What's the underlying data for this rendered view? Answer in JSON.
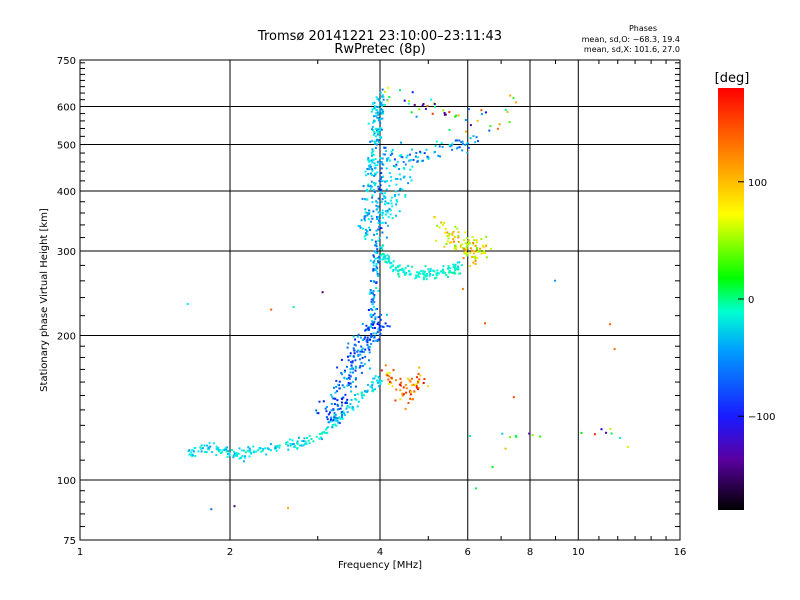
{
  "header": {
    "title": "Tromsø 20141221 23:10:00–23:11:43",
    "subtitle": "RwPretec (8p)",
    "stats_heading": "Phases",
    "stats_line_o": "mean, sd,O: −68.3, 19.4",
    "stats_line_x": "mean, sd,X: 101.6, 27.0"
  },
  "colorbar": {
    "unit_label": "[deg]",
    "range": [
      -180,
      180
    ],
    "ticks": [
      {
        "value": 100,
        "label": "100"
      },
      {
        "value": 0,
        "label": "0"
      },
      {
        "value": -100,
        "label": "−100"
      }
    ]
  },
  "chart_data": {
    "type": "scatter",
    "title": "Tromsø 20141221 23:10:00–23:11:43",
    "subtitle": "RwPretec (8p)",
    "xlabel": "Frequency [MHz]",
    "ylabel": "Stationary phase Virtual Height [km]",
    "xscale": "log",
    "yscale": "log",
    "xlim": [
      1,
      16
    ],
    "ylim": [
      75,
      750
    ],
    "grid": true,
    "x_ticks": [
      {
        "value": 1,
        "label": "1"
      },
      {
        "value": 2,
        "label": "2"
      },
      {
        "value": 4,
        "label": "4"
      },
      {
        "value": 6,
        "label": "6"
      },
      {
        "value": 8,
        "label": "8"
      },
      {
        "value": 10,
        "label": "10"
      },
      {
        "value": 16,
        "label": "16"
      }
    ],
    "x_minor_ticks": [
      3,
      5,
      7,
      9,
      11,
      12,
      13,
      14,
      15
    ],
    "y_ticks": [
      {
        "value": 75,
        "label": "75"
      },
      {
        "value": 100,
        "label": "100"
      },
      {
        "value": 200,
        "label": "200"
      },
      {
        "value": 300,
        "label": "300"
      },
      {
        "value": 400,
        "label": "400"
      },
      {
        "value": 500,
        "label": "500"
      },
      {
        "value": 600,
        "label": "600"
      },
      {
        "value": 750,
        "label": "750"
      }
    ],
    "color_variable": "phase [deg]",
    "traces": [
      {
        "x": [
          1.65,
          1.72,
          1.8,
          1.9,
          2.0,
          2.1,
          2.2,
          2.35,
          2.5,
          2.65,
          2.8,
          3.0,
          3.15,
          3.3,
          3.45,
          3.6,
          3.75,
          3.9,
          4.0
        ],
        "y": [
          112,
          116,
          118,
          116,
          114,
          113,
          114,
          116,
          117,
          118,
          120,
          124,
          128,
          134,
          140,
          146,
          152,
          158,
          163
        ],
        "spread": [
          0.02,
          0.025
        ],
        "phase": [
          -75,
          -25
        ],
        "n": 240
      },
      {
        "x": [
          3.1,
          3.25,
          3.4,
          3.55,
          3.7,
          3.85,
          3.97
        ],
        "y": [
          130,
          145,
          160,
          175,
          190,
          205,
          215
        ],
        "spread": [
          0.05,
          0.05
        ],
        "phase": [
          -120,
          -60
        ],
        "n": 220
      },
      {
        "x": [
          3.85,
          3.9,
          3.95,
          4.0,
          4.05
        ],
        "y": [
          215,
          260,
          310,
          380,
          480
        ],
        "spread": [
          0.02,
          0.06
        ],
        "phase": [
          -110,
          -40
        ],
        "n": 130
      },
      {
        "x": [
          3.75,
          3.8,
          3.85,
          3.9,
          3.95,
          4.0
        ],
        "y": [
          320,
          380,
          440,
          500,
          560,
          630
        ],
        "spread": [
          0.025,
          0.04
        ],
        "phase": [
          -90,
          -30
        ],
        "n": 190
      },
      {
        "x": [
          4.0,
          4.15,
          4.35,
          4.55,
          4.8,
          5.05,
          5.3,
          5.5,
          5.7,
          5.85
        ],
        "y": [
          300,
          285,
          275,
          270,
          268,
          268,
          270,
          272,
          275,
          285
        ],
        "spread": [
          0.02,
          0.025
        ],
        "phase": [
          -60,
          -15
        ],
        "n": 150
      },
      {
        "x": [
          4.0,
          4.3,
          4.6,
          5.0,
          5.4,
          5.8,
          6.2
        ],
        "y": [
          480,
          470,
          470,
          480,
          490,
          500,
          500
        ],
        "spread": [
          0.04,
          0.04
        ],
        "phase": [
          -110,
          -40
        ],
        "n": 80
      },
      {
        "x": [
          4.05,
          4.3,
          4.6
        ],
        "y": [
          350,
          400,
          450
        ],
        "spread": [
          0.04,
          0.1
        ],
        "phase": [
          -80,
          -30
        ],
        "n": 70
      },
      {
        "x": [
          5.2,
          5.5,
          5.8,
          6.0,
          6.3,
          6.5
        ],
        "y": [
          340,
          325,
          315,
          300,
          300,
          305
        ],
        "spread": [
          0.03,
          0.06
        ],
        "phase": [
          60,
          140
        ],
        "n": 110
      },
      {
        "x": [
          4.1,
          4.3,
          4.5,
          4.7,
          4.85
        ],
        "y": [
          170,
          160,
          150,
          155,
          165
        ],
        "spread": [
          0.03,
          0.05
        ],
        "phase": [
          100,
          180
        ],
        "n": 70
      },
      {
        "x": [
          4.2,
          4.5,
          4.9,
          5.4,
          6.0,
          7.0,
          7.5
        ],
        "y": [
          640,
          620,
          600,
          580,
          560,
          540,
          630
        ],
        "spread": [
          0.06,
          0.05
        ],
        "phase": [
          -180,
          180
        ],
        "n": 50
      },
      {
        "x": [
          6.0,
          6.8,
          7.6,
          8.3,
          8.8,
          11.0,
          11.4,
          12.6,
          5.9,
          7.2
        ],
        "y": [
          123,
          124,
          124,
          124,
          124,
          126,
          126,
          124,
          88,
          118
        ],
        "spread": [
          0.02,
          0.015
        ],
        "phase": [
          -180,
          180
        ],
        "n": 18
      },
      {
        "x": [
          1.85,
          2.05,
          2.6,
          1.65,
          2.4,
          2.7,
          3.1,
          11.5,
          11.6,
          12.7,
          9.0,
          6.5,
          5.9,
          7.3
        ],
        "y": [
          88,
          88,
          88,
          235,
          225,
          230,
          248,
          210,
          190,
          118,
          260,
          210,
          250,
          150
        ],
        "spread": [
          0.015,
          0.015
        ],
        "phase": [
          -180,
          180
        ],
        "n": 14
      }
    ]
  }
}
